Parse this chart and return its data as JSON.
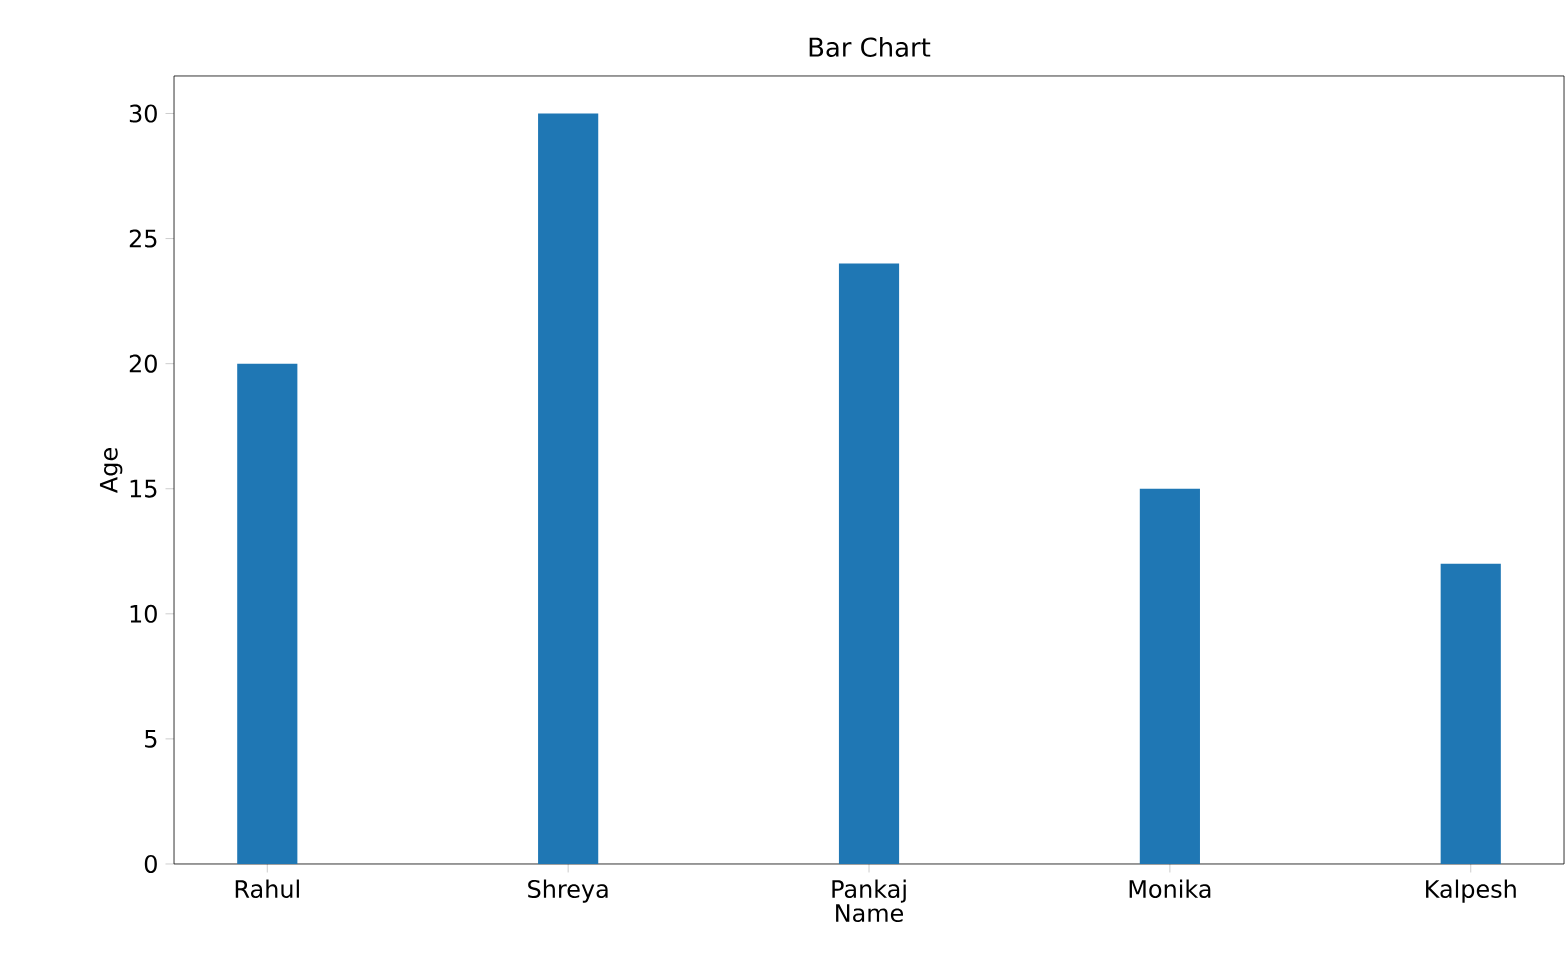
{
  "chart_data": {
    "type": "bar",
    "title": "Bar Chart",
    "xlabel": "Name",
    "ylabel": "Age",
    "categories": [
      "Rahul",
      "Shreya",
      "Pankaj",
      "Monika",
      "Kalpesh"
    ],
    "values": [
      20,
      30,
      24,
      15,
      12
    ],
    "color": "#1f77b4",
    "ylim": [
      0,
      31.5
    ],
    "yticks": [
      0,
      5,
      10,
      15,
      20,
      25,
      30
    ],
    "grid": false
  }
}
